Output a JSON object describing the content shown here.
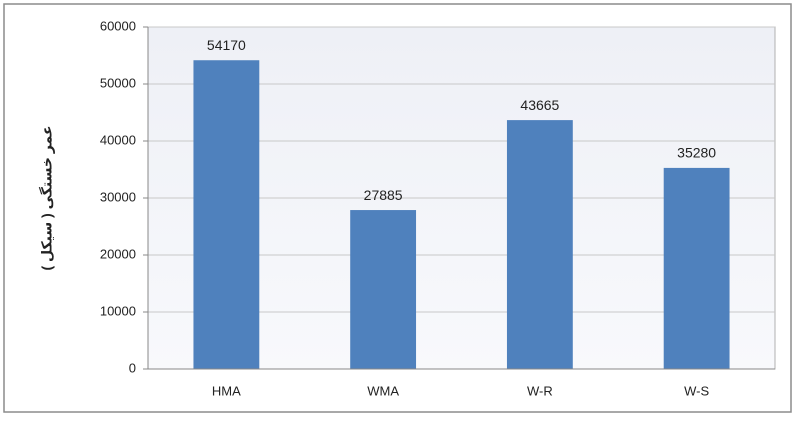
{
  "chart_data": {
    "type": "bar",
    "y_label": "عمر خستگی ( سیکل )",
    "categories": [
      "HMA",
      "WMA",
      "W-R",
      "W-S"
    ],
    "values": [
      54170,
      27885,
      43665,
      35280
    ],
    "color": "#4f81bd",
    "ylim": [
      0,
      60000
    ],
    "yticks": [
      0,
      10000,
      20000,
      30000,
      40000,
      50000,
      60000
    ],
    "grid": true,
    "data_labels": true
  }
}
